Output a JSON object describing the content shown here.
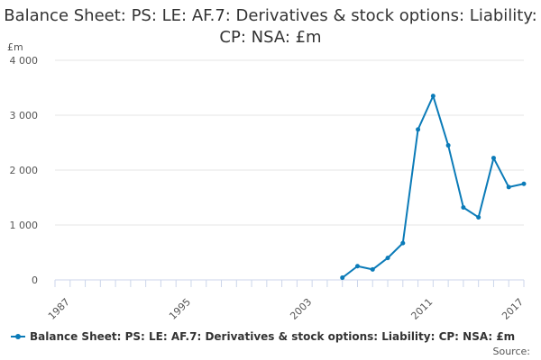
{
  "chart_data": {
    "type": "line",
    "title": "Balance Sheet: PS: LE: AF.7: Derivatives & stock options: Liability: CP: NSA: £m",
    "ylabel": "£m",
    "xlabel": "",
    "xlim": [
      1986,
      2017
    ],
    "ylim": [
      0,
      4000
    ],
    "y_ticks": [
      0,
      1000,
      2000,
      3000,
      4000
    ],
    "y_tick_labels": [
      "0",
      "1 000",
      "2 000",
      "3 000",
      "4 000"
    ],
    "x_ticks": [
      1987,
      1995,
      2003,
      2011,
      2017
    ],
    "x_tick_labels": [
      "1987",
      "1995",
      "2003",
      "2011",
      "2017"
    ],
    "grid": "horizontal",
    "legend_position": "bottom",
    "color": "#0b7bb8",
    "series": [
      {
        "name": "Balance Sheet: PS: LE: AF.7: Derivatives & stock options: Liability: CP: NSA: £m",
        "x": [
          2005,
          2006,
          2007,
          2008,
          2009,
          2010,
          2011,
          2012,
          2013,
          2014,
          2015,
          2016,
          2017
        ],
        "values": [
          40,
          250,
          190,
          400,
          670,
          2740,
          3350,
          2450,
          1320,
          1140,
          2220,
          1690,
          1750
        ]
      }
    ]
  },
  "source_label": "Source:"
}
